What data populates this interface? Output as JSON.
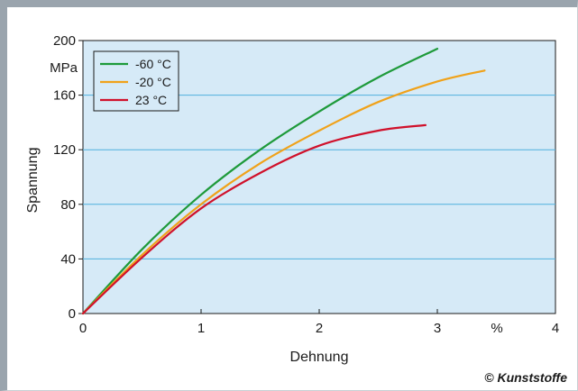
{
  "chart_data": {
    "type": "line",
    "xlabel": "Dehnung",
    "ylabel": "Spannung",
    "x_unit": "%",
    "y_unit": "MPa",
    "xlim": [
      0,
      4
    ],
    "ylim": [
      0,
      200
    ],
    "x_ticks": [
      "0",
      "1",
      "2",
      "3",
      "4"
    ],
    "y_ticks": [
      "0",
      "40",
      "80",
      "120",
      "160",
      "200"
    ],
    "grid": "horizontal",
    "legend_position": "top-left",
    "series": [
      {
        "name": "-60 °C",
        "color": "#1e9a3a",
        "x": [
          0,
          0.5,
          1.0,
          1.5,
          2.0,
          2.5,
          3.0
        ],
        "y": [
          0,
          47,
          87,
          120,
          148,
          173,
          194
        ]
      },
      {
        "name": "-20 °C",
        "color": "#f0a21a",
        "x": [
          0,
          0.5,
          1.0,
          1.5,
          2.0,
          2.5,
          3.0,
          3.4
        ],
        "y": [
          0,
          43,
          80,
          110,
          134,
          155,
          170,
          178
        ]
      },
      {
        "name": "23 °C",
        "color": "#d0112b",
        "x": [
          0,
          0.5,
          1.0,
          1.5,
          2.0,
          2.5,
          2.9
        ],
        "y": [
          0,
          41,
          77,
          103,
          123,
          134,
          138
        ]
      }
    ]
  },
  "credit": "© Kunststoffe"
}
